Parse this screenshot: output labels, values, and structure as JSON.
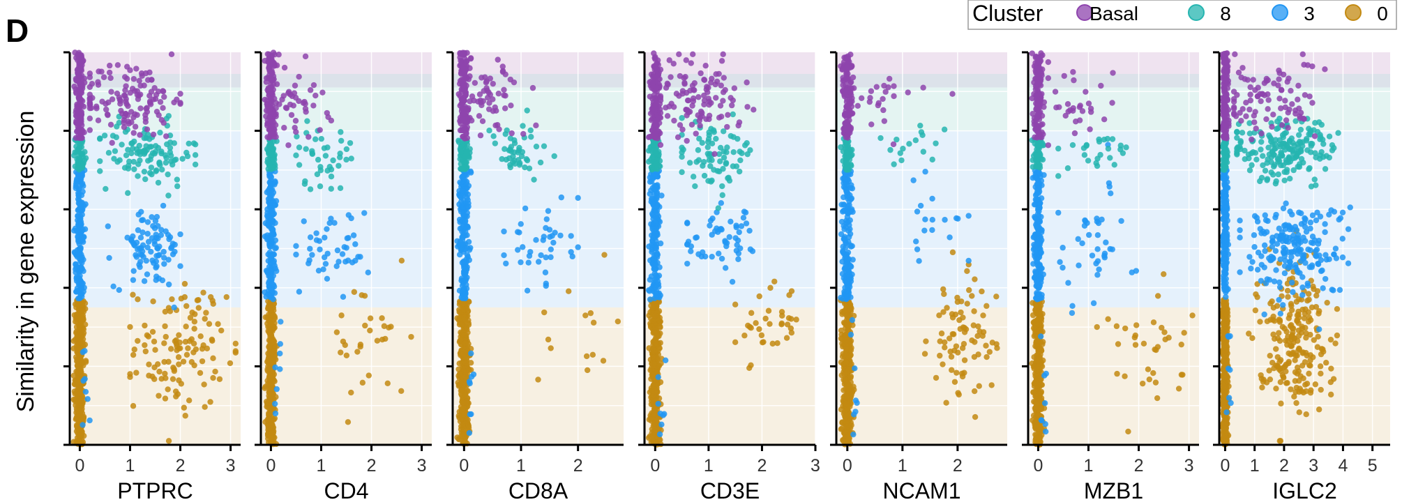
{
  "panel_label": "D",
  "ylabel": "Similarity in gene expression",
  "legend": {
    "title": "Cluster",
    "placement": "top-right",
    "entries": [
      {
        "label": "Basal",
        "color": "#8E44AD"
      },
      {
        "label": "8",
        "color": "#26B5B0"
      },
      {
        "label": "3",
        "color": "#2196F3"
      },
      {
        "label": "0",
        "color": "#C38A12"
      }
    ]
  },
  "colors": {
    "Basal": "#8E44AD",
    "8": "#26B5B0",
    "3": "#2196F3",
    "0": "#C38A12",
    "band_Basal": "#EFE3F0",
    "band_overlap": "#DCE2EA",
    "band_8": "#E4F4F2",
    "band_3": "#E5F1FC",
    "band_0": "#F7F0E2"
  },
  "chart_data": [
    {
      "type": "scatter",
      "xlabel": "PTPRC",
      "xlim": [
        -0.2,
        3.2
      ],
      "xticks": [
        "0",
        "1",
        "2",
        "3"
      ],
      "groups": {
        "Basal": {
          "n": 130,
          "center": [
            1.0,
            0.88
          ],
          "spread": [
            0.5,
            0.05
          ],
          "x_range": [
            0.2,
            2.0
          ]
        },
        "8": {
          "n": 110,
          "center": [
            1.3,
            0.74
          ],
          "spread": [
            0.5,
            0.04
          ],
          "x_range": [
            0.4,
            2.3
          ]
        },
        "3": {
          "n": 90,
          "center": [
            1.4,
            0.5
          ],
          "spread": [
            0.35,
            0.05
          ],
          "x_range": [
            0.5,
            2.0
          ]
        },
        "0": {
          "n": 120,
          "center": [
            2.0,
            0.25
          ],
          "spread": [
            0.45,
            0.08
          ],
          "x_range": [
            1.0,
            3.1
          ]
        }
      }
    },
    {
      "type": "scatter",
      "xlabel": "CD4",
      "xlim": [
        -0.2,
        3.2
      ],
      "xticks": [
        "0",
        "1",
        "2",
        "3"
      ],
      "groups": {
        "Basal": {
          "n": 45,
          "center": [
            0.5,
            0.87
          ],
          "spread": [
            0.3,
            0.05
          ],
          "x_range": [
            0.1,
            1.2
          ]
        },
        "8": {
          "n": 40,
          "center": [
            1.0,
            0.73
          ],
          "spread": [
            0.3,
            0.04
          ],
          "x_range": [
            0.5,
            1.6
          ]
        },
        "3": {
          "n": 45,
          "center": [
            1.2,
            0.5
          ],
          "spread": [
            0.4,
            0.05
          ],
          "x_range": [
            0.5,
            2.0
          ]
        },
        "0": {
          "n": 30,
          "center": [
            2.0,
            0.27
          ],
          "spread": [
            0.4,
            0.08
          ],
          "x_range": [
            1.2,
            2.8
          ]
        }
      }
    },
    {
      "type": "scatter",
      "xlabel": "CD8A",
      "xlim": [
        -0.2,
        2.8
      ],
      "xticks": [
        "0",
        "1",
        "2"
      ],
      "groups": {
        "Basal": {
          "n": 55,
          "center": [
            0.5,
            0.88
          ],
          "spread": [
            0.3,
            0.05
          ],
          "x_range": [
            0.1,
            1.4
          ]
        },
        "8": {
          "n": 45,
          "center": [
            0.9,
            0.74
          ],
          "spread": [
            0.3,
            0.04
          ],
          "x_range": [
            0.4,
            1.6
          ]
        },
        "3": {
          "n": 40,
          "center": [
            1.3,
            0.52
          ],
          "spread": [
            0.3,
            0.05
          ],
          "x_range": [
            0.7,
            2.0
          ]
        },
        "0": {
          "n": 14,
          "center": [
            2.0,
            0.28
          ],
          "spread": [
            0.35,
            0.07
          ],
          "x_range": [
            1.3,
            2.7
          ]
        }
      }
    },
    {
      "type": "scatter",
      "xlabel": "CD3E",
      "xlim": [
        -0.2,
        3.0
      ],
      "xticks": [
        "0",
        "1",
        "2",
        "3"
      ],
      "groups": {
        "Basal": {
          "n": 110,
          "center": [
            0.8,
            0.88
          ],
          "spread": [
            0.4,
            0.05
          ],
          "x_range": [
            0.1,
            2.0
          ]
        },
        "8": {
          "n": 75,
          "center": [
            1.1,
            0.74
          ],
          "spread": [
            0.4,
            0.04
          ],
          "x_range": [
            0.5,
            1.8
          ]
        },
        "3": {
          "n": 55,
          "center": [
            1.3,
            0.52
          ],
          "spread": [
            0.4,
            0.04
          ],
          "x_range": [
            0.6,
            2.2
          ]
        },
        "0": {
          "n": 35,
          "center": [
            2.1,
            0.31
          ],
          "spread": [
            0.3,
            0.05
          ],
          "x_range": [
            1.5,
            2.9
          ]
        }
      }
    },
    {
      "type": "scatter",
      "xlabel": "NCAM1",
      "xlim": [
        -0.2,
        2.9
      ],
      "xticks": [
        "0",
        "1",
        "2"
      ],
      "groups": {
        "Basal": {
          "n": 22,
          "center": [
            0.6,
            0.88
          ],
          "spread": [
            0.4,
            0.04
          ],
          "x_range": [
            0.1,
            2.0
          ]
        },
        "8": {
          "n": 16,
          "center": [
            1.0,
            0.75
          ],
          "spread": [
            0.4,
            0.03
          ],
          "x_range": [
            0.4,
            1.8
          ]
        },
        "3": {
          "n": 18,
          "center": [
            1.6,
            0.55
          ],
          "spread": [
            0.3,
            0.06
          ],
          "x_range": [
            1.2,
            2.2
          ]
        },
        "0": {
          "n": 80,
          "center": [
            2.1,
            0.27
          ],
          "spread": [
            0.3,
            0.08
          ],
          "x_range": [
            1.3,
            2.8
          ]
        }
      }
    },
    {
      "type": "scatter",
      "xlabel": "MZB1",
      "xlim": [
        -0.2,
        3.2
      ],
      "xticks": [
        "0",
        "1",
        "2",
        "3"
      ],
      "groups": {
        "Basal": {
          "n": 30,
          "center": [
            0.8,
            0.88
          ],
          "spread": [
            0.4,
            0.05
          ],
          "x_range": [
            0.2,
            2.0
          ]
        },
        "8": {
          "n": 25,
          "center": [
            1.2,
            0.74
          ],
          "spread": [
            0.4,
            0.03
          ],
          "x_range": [
            0.4,
            2.0
          ]
        },
        "3": {
          "n": 40,
          "center": [
            1.1,
            0.5
          ],
          "spread": [
            0.4,
            0.08
          ],
          "x_range": [
            0.4,
            2.2
          ]
        },
        "0": {
          "n": 35,
          "center": [
            2.0,
            0.25
          ],
          "spread": [
            0.5,
            0.08
          ],
          "x_range": [
            1.0,
            3.1
          ]
        }
      }
    },
    {
      "type": "scatter",
      "xlabel": "IGLC2",
      "xlim": [
        -0.2,
        5.6
      ],
      "xticks": [
        "0",
        "1",
        "2",
        "3",
        "4",
        "5"
      ],
      "groups": {
        "Basal": {
          "n": 90,
          "center": [
            1.5,
            0.88
          ],
          "spread": [
            0.8,
            0.05
          ],
          "x_range": [
            0.3,
            4.5
          ]
        },
        "8": {
          "n": 190,
          "center": [
            2.0,
            0.75
          ],
          "spread": [
            0.9,
            0.04
          ],
          "x_range": [
            0.4,
            4.2
          ]
        },
        "3": {
          "n": 200,
          "center": [
            2.3,
            0.5
          ],
          "spread": [
            0.9,
            0.06
          ],
          "x_range": [
            0.5,
            5.0
          ]
        },
        "0": {
          "n": 220,
          "center": [
            2.3,
            0.28
          ],
          "spread": [
            0.6,
            0.09
          ],
          "x_range": [
            0.8,
            3.8
          ]
        }
      }
    }
  ]
}
